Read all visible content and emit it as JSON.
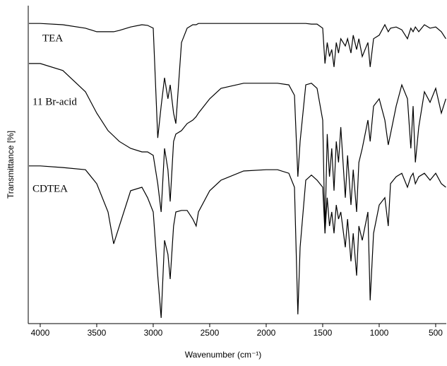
{
  "chart_data": {
    "type": "line",
    "xlabel": "Wavenumber (cm⁻¹)",
    "ylabel": "Transmittance [%]",
    "xlim": [
      4106,
      406
    ],
    "ylim": [
      0,
      100
    ],
    "xticks": [
      4000,
      3500,
      3000,
      2500,
      2000,
      1500,
      1000,
      500
    ],
    "x": [
      4100,
      4000,
      3800,
      3600,
      3500,
      3400,
      3350,
      3300,
      3200,
      3100,
      3050,
      3000,
      2960,
      2930,
      2900,
      2870,
      2850,
      2820,
      2800,
      2750,
      2700,
      2650,
      2620,
      2600,
      2500,
      2400,
      2200,
      2000,
      1900,
      1800,
      1750,
      1720,
      1700,
      1650,
      1600,
      1550,
      1500,
      1480,
      1460,
      1440,
      1420,
      1400,
      1380,
      1360,
      1340,
      1300,
      1280,
      1250,
      1230,
      1200,
      1180,
      1150,
      1100,
      1080,
      1050,
      1000,
      950,
      920,
      900,
      850,
      800,
      750,
      720,
      700,
      680,
      650,
      600,
      550,
      500,
      450,
      410
    ],
    "series": [
      {
        "name": "TEA",
        "color": "#000000",
        "values": [
          94.4,
          94.4,
          94.0,
          92.9,
          91.8,
          91.8,
          91.8,
          92.2,
          93.3,
          94.0,
          93.8,
          92.9,
          58.4,
          68.4,
          77.3,
          70.7,
          75.1,
          66.2,
          62.9,
          88.4,
          92.9,
          94.0,
          94.0,
          94.4,
          94.4,
          94.4,
          94.4,
          94.4,
          94.4,
          94.4,
          94.4,
          94.4,
          94.4,
          94.4,
          94.2,
          94.2,
          92.9,
          81.8,
          88.4,
          84.0,
          86.2,
          80.7,
          88.4,
          85.1,
          89.6,
          87.3,
          89.6,
          85.1,
          90.7,
          86.2,
          89.6,
          84.0,
          88.4,
          80.7,
          89.6,
          90.7,
          94.0,
          91.8,
          92.9,
          93.3,
          92.4,
          89.6,
          92.9,
          91.8,
          93.3,
          91.8,
          94.0,
          92.9,
          93.3,
          91.8,
          89.6
        ]
      },
      {
        "name": "11 Br-acid",
        "color": "#000000",
        "values": [
          81.8,
          81.8,
          79.6,
          72.9,
          66.2,
          60.7,
          59.0,
          57.3,
          55.1,
          54.0,
          54.0,
          52.9,
          44.0,
          35.1,
          55.1,
          48.4,
          38.4,
          57.3,
          59.6,
          60.7,
          62.9,
          64.0,
          65.1,
          66.2,
          70.7,
          74.0,
          75.6,
          75.6,
          75.6,
          75.1,
          71.8,
          46.2,
          57.3,
          75.1,
          75.6,
          74.0,
          64.0,
          28.4,
          59.6,
          46.2,
          55.1,
          41.8,
          57.3,
          50.7,
          61.8,
          39.6,
          52.9,
          37.3,
          48.4,
          35.1,
          50.7,
          55.1,
          64.0,
          57.3,
          68.4,
          70.7,
          64.0,
          56.2,
          59.6,
          68.4,
          75.1,
          70.7,
          55.1,
          68.4,
          50.7,
          61.8,
          72.9,
          69.6,
          74.0,
          66.2,
          70.7
        ]
      },
      {
        "name": "CDTEA",
        "color": "#000000",
        "values": [
          49.6,
          49.6,
          49.1,
          48.4,
          44.0,
          35.1,
          25.1,
          30.7,
          41.8,
          42.9,
          39.6,
          35.1,
          15.1,
          1.8,
          26.2,
          21.8,
          14.0,
          30.7,
          35.1,
          35.6,
          35.6,
          32.9,
          30.7,
          35.1,
          41.8,
          45.1,
          48.0,
          48.4,
          48.4,
          47.3,
          42.9,
          2.9,
          24.0,
          45.1,
          46.7,
          45.1,
          42.9,
          28.4,
          39.6,
          30.7,
          35.1,
          28.4,
          37.3,
          32.9,
          35.1,
          24.0,
          32.9,
          19.6,
          28.4,
          15.1,
          30.7,
          26.2,
          35.1,
          7.3,
          28.4,
          37.3,
          39.6,
          30.7,
          44.0,
          46.2,
          47.3,
          42.9,
          46.2,
          47.3,
          44.0,
          46.2,
          47.3,
          45.1,
          47.3,
          44.0,
          42.9
        ]
      }
    ]
  }
}
